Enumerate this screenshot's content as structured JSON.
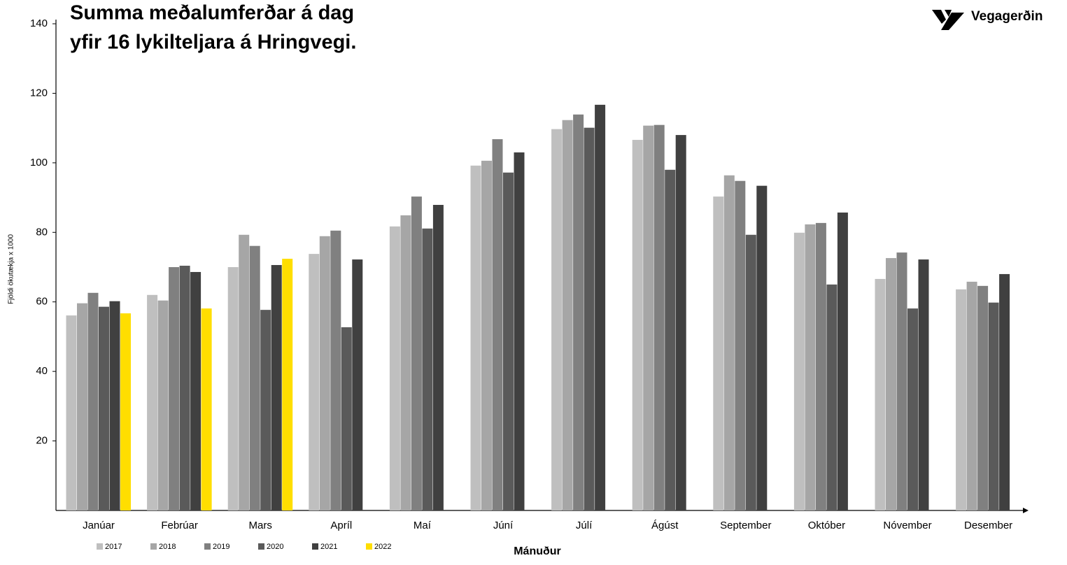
{
  "chart_data": {
    "type": "bar",
    "title": [
      "Summa meðalumferðar á dag",
      "yfir 16 lykilteljara á Hringvegi."
    ],
    "logo": "Vegagerðin",
    "y_label": "Fjöldi ökutækja x 1000",
    "x_label": "Mánuður",
    "categories": [
      "Janúar",
      "Febrúar",
      "Mars",
      "Apríl",
      "Maí",
      "Júní",
      "Júlí",
      "Ágúst",
      "September",
      "Október",
      "Nóvember",
      "Desember"
    ],
    "series": [
      {
        "name": "2017",
        "color": "#bfbfbf",
        "values": [
          56.1,
          62.0,
          70.0,
          73.8,
          81.7,
          99.2,
          109.7,
          106.6,
          90.3,
          79.9,
          66.6,
          63.6
        ]
      },
      {
        "name": "2018",
        "color": "#a6a6a6",
        "values": [
          59.6,
          60.4,
          79.3,
          78.9,
          84.9,
          100.6,
          112.3,
          110.7,
          96.4,
          82.3,
          72.6,
          65.8
        ]
      },
      {
        "name": "2019",
        "color": "#808080",
        "values": [
          62.6,
          70.0,
          76.1,
          80.5,
          90.3,
          106.8,
          113.9,
          110.9,
          94.8,
          82.7,
          74.2,
          64.6
        ]
      },
      {
        "name": "2020",
        "color": "#5a5a5a",
        "values": [
          58.6,
          70.4,
          57.7,
          52.7,
          81.1,
          97.2,
          110.1,
          98.0,
          79.3,
          65.0,
          58.1,
          59.8
        ]
      },
      {
        "name": "2021",
        "color": "#404040",
        "values": [
          60.2,
          68.6,
          70.6,
          72.2,
          87.9,
          103.0,
          116.7,
          108.0,
          93.4,
          85.7,
          72.2,
          68.0
        ]
      },
      {
        "name": "2022",
        "color": "#ffde00",
        "values": [
          56.7,
          58.1,
          72.4,
          null,
          null,
          null,
          null,
          null,
          null,
          null,
          null,
          null
        ]
      }
    ],
    "ylim": [
      0,
      140
    ],
    "yticks": [
      20,
      40,
      60,
      80,
      100,
      120,
      140
    ],
    "grid": false
  }
}
